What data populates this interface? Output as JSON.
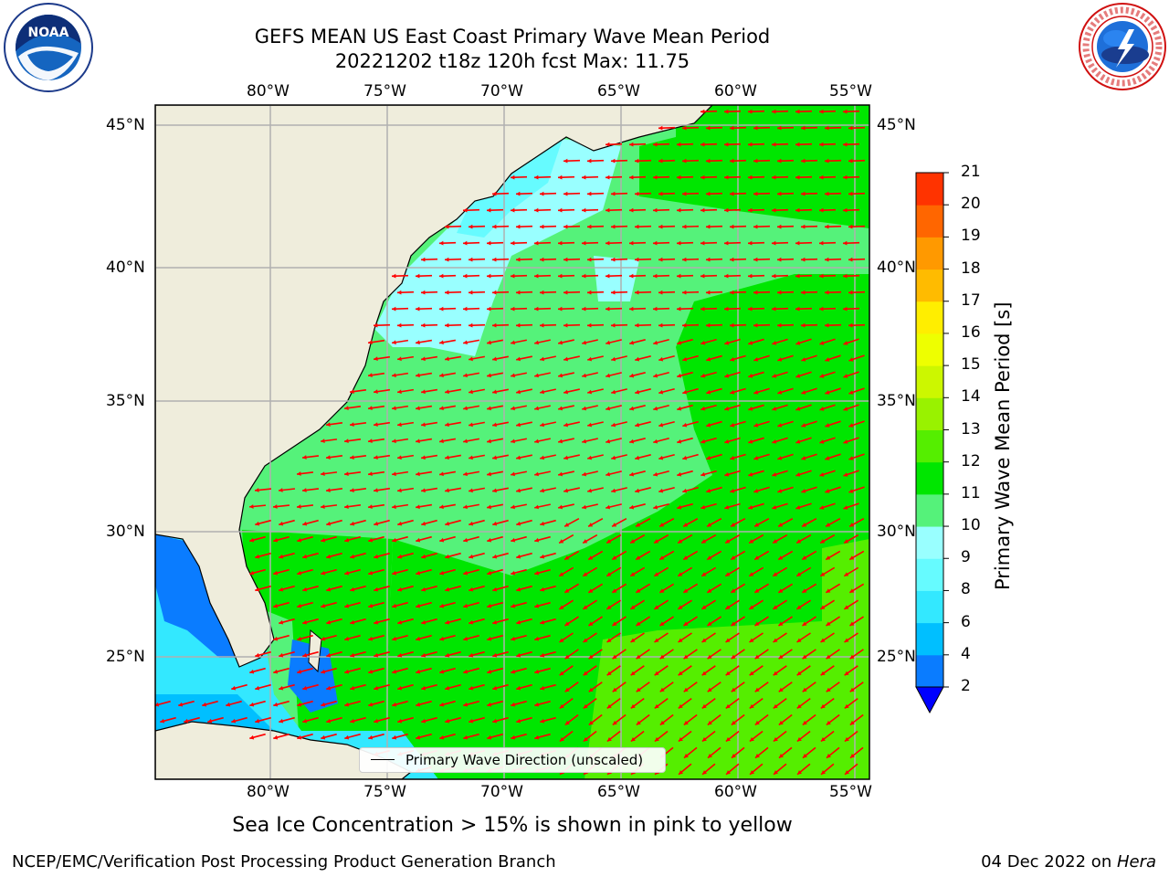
{
  "title": {
    "line1": "GEFS MEAN US East Coast Primary Wave Mean Period",
    "line2": "20221202 t18z 120h fcst   Max: 11.75"
  },
  "axes": {
    "lon_ticks": [
      "80°W",
      "75°W",
      "70°W",
      "65°W",
      "60°W",
      "55°W"
    ],
    "lat_ticks": [
      "45°N",
      "40°N",
      "35°N",
      "30°N",
      "25°N"
    ]
  },
  "legend": {
    "label": "Primary Wave Direction (unscaled)"
  },
  "colorbar": {
    "title": "Primary Wave Mean Period [s]",
    "levels": [
      "2",
      "4",
      "6",
      "8",
      "9",
      "10",
      "11",
      "12",
      "13",
      "14",
      "15",
      "16",
      "17",
      "18",
      "19",
      "20",
      "21"
    ],
    "colors": [
      "#0a7cff",
      "#00bfff",
      "#33e8ff",
      "#66fbff",
      "#99ffff",
      "#55f27a",
      "#00e600",
      "#55ee00",
      "#99f200",
      "#ccf700",
      "#eeff00",
      "#ffee00",
      "#ffbb00",
      "#ff9900",
      "#ff6600",
      "#ff3300",
      "#ff0000"
    ],
    "under_color": "#0000ff"
  },
  "notes": {
    "sea_ice": "Sea Ice Concentration > 15% is shown in pink to yellow",
    "credit": "NCEP/EMC/Verification Post Processing Product Generation Branch",
    "date": "04 Dec 2022 on ",
    "host": "Hera"
  },
  "logos": {
    "left": {
      "name": "NOAA",
      "text": "NOAA",
      "ring_text": "NATIONAL OCEANIC AND ATMOSPHERIC ADMINISTRATION · U.S. DEPARTMENT OF COMMERCE"
    },
    "right": {
      "name": "National Weather Service",
      "ring_text": "NATIONAL WEATHER SERVICE"
    }
  },
  "map_colors": {
    "land": "#efeddc",
    "coast": "#000000",
    "grid": "#b0b0b0",
    "arrow": "#ff0000"
  }
}
